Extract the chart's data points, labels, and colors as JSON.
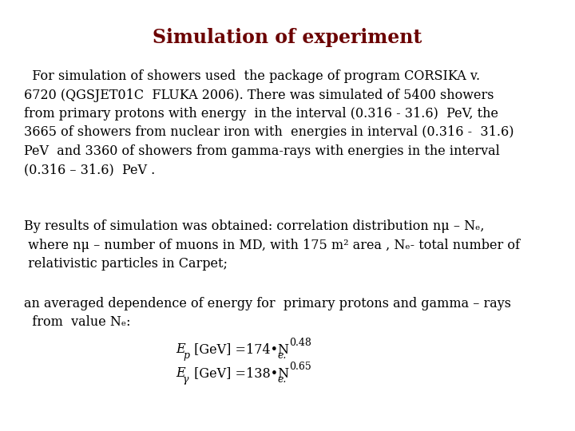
{
  "title": "Simulation of experiment",
  "title_color": "#6B0000",
  "title_fontsize": 17,
  "background_color": "#ffffff",
  "text_color": "#000000",
  "body_fontsize": 11.5,
  "paragraph1": "  For simulation of showers used  the package of program CORSIKA v.\n6720 (QGSJET01C  FLUKA 2006). There was simulated of 5400 showers\nfrom primary protons with energy  in the interval (0.316 - 31.6)  PeV, the\n3665 of showers from nuclear iron with  energies in interval (0.316 -  31.6)\nPeV  and 3360 of showers from gamma-rays with energies in the interval\n(0.316 – 31.6)  PeV .",
  "paragraph2": "By results of simulation was obtained: correlation distribution nμ – Nₑ,\n where nμ – number of muons in MD, with 175 m² area , Nₑ- total number of\n relativistic particles in Carpet;",
  "paragraph3": "an averaged dependence of energy for  primary protons and gamma – rays\n  from  value Nₑ:",
  "eq1_main": "E$_{p}$ [GeV] =174•N$_{e.}^{0.48}$",
  "eq2_main": "E$_{γ}$ [GeV] =138•N$_{e.}^{0.65}$"
}
